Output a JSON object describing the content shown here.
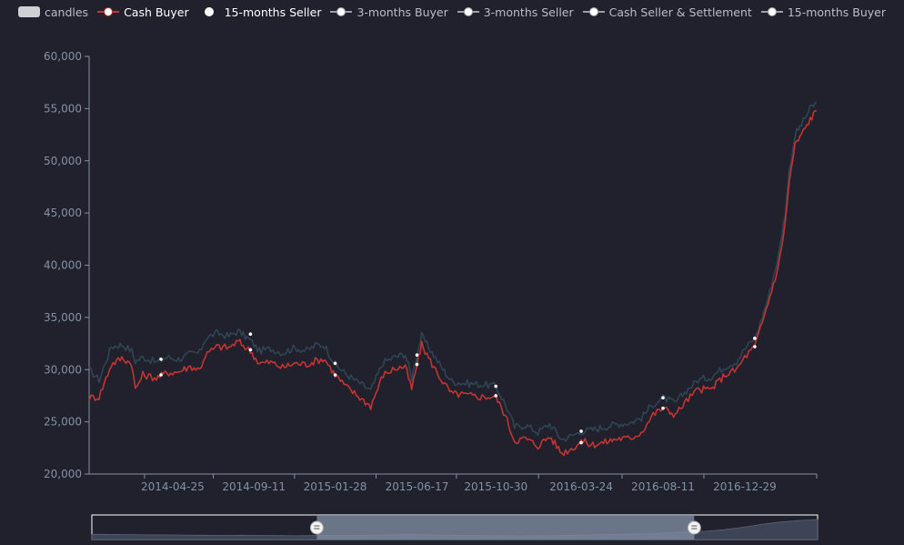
{
  "legend": {
    "items": [
      {
        "label": "candles",
        "state": "inactive",
        "swatch": "box"
      },
      {
        "label": "Cash Buyer",
        "state": "active",
        "swatch": "line",
        "color": "#c23531"
      },
      {
        "label": "15-months Seller",
        "state": "active",
        "swatch": "dot",
        "color": "#ffffff"
      },
      {
        "label": "3-months Buyer",
        "state": "inactive",
        "swatch": "line",
        "color": "#9aa0a8"
      },
      {
        "label": "3-months Seller",
        "state": "inactive",
        "swatch": "line",
        "color": "#9aa0a8"
      },
      {
        "label": "Cash Seller & Settlement",
        "state": "inactive",
        "swatch": "line",
        "color": "#9aa0a8"
      },
      {
        "label": "15-months Buyer",
        "state": "inactive",
        "swatch": "line",
        "color": "#9aa0a8"
      }
    ]
  },
  "colors": {
    "background": "#21202d",
    "cash_buyer": "#c23531",
    "seller_15m": "#2f4554",
    "axis": "#8392a5",
    "slider_selected": "#8392a5",
    "slider_border": "#ffffff"
  },
  "chart_data": {
    "type": "line",
    "title": "",
    "xlabel": "",
    "ylabel": "",
    "ylim": [
      20000,
      60000
    ],
    "yticks": [
      20000,
      25000,
      30000,
      35000,
      40000,
      45000,
      50000,
      55000,
      60000
    ],
    "ytick_labels": [
      "20,000",
      "25,000",
      "30,000",
      "35,000",
      "40,000",
      "45,000",
      "50,000",
      "55,000",
      "60,000"
    ],
    "xrange": [
      "2013-12-03",
      "2017-05-01"
    ],
    "xticks": [
      "2014-04-25",
      "2014-09-11",
      "2015-01-28",
      "2015-06-17",
      "2015-10-30",
      "2016-03-24",
      "2016-08-11",
      "2016-12-29"
    ],
    "grid": false,
    "legend_position": "top-center",
    "series": [
      {
        "name": "Cash Buyer",
        "color": "#c23531",
        "points": [
          [
            "2013-12-03",
            27300
          ],
          [
            "2013-12-20",
            27400
          ],
          [
            "2014-01-10",
            30500
          ],
          [
            "2014-01-28",
            31100
          ],
          [
            "2014-02-14",
            30600
          ],
          [
            "2014-02-20",
            28100
          ],
          [
            "2014-03-05",
            29500
          ],
          [
            "2014-03-28",
            29200
          ],
          [
            "2014-04-15",
            29700
          ],
          [
            "2014-05-05",
            29800
          ],
          [
            "2014-05-25",
            30300
          ],
          [
            "2014-06-10",
            30000
          ],
          [
            "2014-06-20",
            31400
          ],
          [
            "2014-07-10",
            32200
          ],
          [
            "2014-07-30",
            32100
          ],
          [
            "2014-08-15",
            32700
          ],
          [
            "2014-09-05",
            31800
          ],
          [
            "2014-09-20",
            30600
          ],
          [
            "2014-10-10",
            30700
          ],
          [
            "2014-10-30",
            30200
          ],
          [
            "2014-11-20",
            30600
          ],
          [
            "2014-12-10",
            30500
          ],
          [
            "2014-12-28",
            30900
          ],
          [
            "2015-01-10",
            31000
          ],
          [
            "2015-01-28",
            29500
          ],
          [
            "2015-02-15",
            28400
          ],
          [
            "2015-03-05",
            27600
          ],
          [
            "2015-03-30",
            26500
          ],
          [
            "2015-04-20",
            29500
          ],
          [
            "2015-05-10",
            30100
          ],
          [
            "2015-05-28",
            30300
          ],
          [
            "2015-06-08",
            28100
          ],
          [
            "2015-06-17",
            30500
          ],
          [
            "2015-06-25",
            32400
          ],
          [
            "2015-07-10",
            30800
          ],
          [
            "2015-07-28",
            29100
          ],
          [
            "2015-08-15",
            27700
          ],
          [
            "2015-09-05",
            27600
          ],
          [
            "2015-09-30",
            27400
          ],
          [
            "2015-10-20",
            27400
          ],
          [
            "2015-10-30",
            27400
          ],
          [
            "2015-11-15",
            25600
          ],
          [
            "2015-12-01",
            23200
          ],
          [
            "2015-12-20",
            23400
          ],
          [
            "2016-01-10",
            22700
          ],
          [
            "2016-01-30",
            23600
          ],
          [
            "2016-02-20",
            22000
          ],
          [
            "2016-03-10",
            22500
          ],
          [
            "2016-03-24",
            23200
          ],
          [
            "2016-04-10",
            22800
          ],
          [
            "2016-05-01",
            23000
          ],
          [
            "2016-05-25",
            23400
          ],
          [
            "2016-06-15",
            23400
          ],
          [
            "2016-07-05",
            24000
          ],
          [
            "2016-07-25",
            25700
          ],
          [
            "2016-08-11",
            26300
          ],
          [
            "2016-09-01",
            25700
          ],
          [
            "2016-09-20",
            27000
          ],
          [
            "2016-10-10",
            28100
          ],
          [
            "2016-11-01",
            28100
          ],
          [
            "2016-11-25",
            29500
          ],
          [
            "2016-12-15",
            30000
          ],
          [
            "2016-12-29",
            31200
          ],
          [
            "2017-01-15",
            32200
          ],
          [
            "2017-01-28",
            34500
          ],
          [
            "2017-02-10",
            37000
          ],
          [
            "2017-02-25",
            40000
          ],
          [
            "2017-03-08",
            44000
          ],
          [
            "2017-03-15",
            48000
          ],
          [
            "2017-03-25",
            51500
          ],
          [
            "2017-04-05",
            52500
          ],
          [
            "2017-04-20",
            54000
          ],
          [
            "2017-05-01",
            54800
          ]
        ]
      },
      {
        "name": "15-months Seller",
        "color": "#2f4554",
        "points": [
          [
            "2013-12-03",
            30000
          ],
          [
            "2013-12-20",
            29000
          ],
          [
            "2014-01-10",
            32200
          ],
          [
            "2014-01-28",
            32400
          ],
          [
            "2014-02-14",
            31800
          ],
          [
            "2014-02-20",
            30800
          ],
          [
            "2014-03-05",
            31200
          ],
          [
            "2014-03-28",
            30700
          ],
          [
            "2014-04-15",
            31200
          ],
          [
            "2014-05-05",
            31000
          ],
          [
            "2014-05-25",
            31500
          ],
          [
            "2014-06-10",
            31600
          ],
          [
            "2014-06-20",
            33000
          ],
          [
            "2014-07-10",
            33500
          ],
          [
            "2014-07-30",
            33200
          ],
          [
            "2014-08-15",
            33700
          ],
          [
            "2014-09-05",
            32800
          ],
          [
            "2014-09-20",
            31800
          ],
          [
            "2014-10-10",
            32000
          ],
          [
            "2014-10-30",
            31600
          ],
          [
            "2014-11-20",
            32100
          ],
          [
            "2014-12-10",
            31800
          ],
          [
            "2014-12-28",
            32400
          ],
          [
            "2015-01-10",
            32300
          ],
          [
            "2015-01-28",
            30500
          ],
          [
            "2015-02-15",
            29600
          ],
          [
            "2015-03-05",
            28900
          ],
          [
            "2015-03-30",
            28000
          ],
          [
            "2015-04-20",
            30700
          ],
          [
            "2015-05-10",
            31200
          ],
          [
            "2015-05-28",
            31500
          ],
          [
            "2015-06-08",
            29200
          ],
          [
            "2015-06-17",
            31500
          ],
          [
            "2015-06-25",
            33200
          ],
          [
            "2015-07-10",
            31900
          ],
          [
            "2015-07-28",
            30300
          ],
          [
            "2015-08-15",
            28900
          ],
          [
            "2015-09-05",
            28700
          ],
          [
            "2015-09-30",
            28600
          ],
          [
            "2015-10-20",
            28500
          ],
          [
            "2015-10-30",
            28400
          ],
          [
            "2015-11-15",
            26700
          ],
          [
            "2015-12-01",
            24500
          ],
          [
            "2015-12-20",
            24700
          ],
          [
            "2016-01-10",
            24000
          ],
          [
            "2016-01-30",
            24800
          ],
          [
            "2016-02-20",
            23300
          ],
          [
            "2016-03-10",
            23700
          ],
          [
            "2016-03-24",
            24100
          ],
          [
            "2016-04-10",
            24200
          ],
          [
            "2016-05-01",
            24500
          ],
          [
            "2016-05-25",
            24800
          ],
          [
            "2016-06-15",
            24900
          ],
          [
            "2016-07-05",
            25400
          ],
          [
            "2016-07-25",
            26700
          ],
          [
            "2016-08-11",
            27300
          ],
          [
            "2016-09-01",
            26800
          ],
          [
            "2016-09-20",
            28000
          ],
          [
            "2016-10-10",
            29000
          ],
          [
            "2016-11-01",
            29300
          ],
          [
            "2016-11-25",
            30300
          ],
          [
            "2016-12-15",
            30800
          ],
          [
            "2016-12-29",
            32000
          ],
          [
            "2017-01-15",
            33000
          ],
          [
            "2017-01-28",
            35000
          ],
          [
            "2017-02-10",
            37500
          ],
          [
            "2017-02-25",
            41000
          ],
          [
            "2017-03-08",
            45000
          ],
          [
            "2017-03-15",
            49000
          ],
          [
            "2017-03-25",
            52500
          ],
          [
            "2017-04-05",
            53500
          ],
          [
            "2017-04-20",
            55000
          ],
          [
            "2017-05-01",
            55600
          ]
        ]
      }
    ],
    "markers": {
      "Cash Buyer": [
        [
          "2014-04-05",
          29500
        ],
        [
          "2014-09-05",
          31900
        ],
        [
          "2015-01-28",
          29500
        ],
        [
          "2015-06-17",
          30500
        ],
        [
          "2015-10-30",
          27500
        ],
        [
          "2016-03-24",
          23000
        ],
        [
          "2016-08-11",
          26300
        ],
        [
          "2017-01-15",
          32200
        ]
      ],
      "15-months Seller": [
        [
          "2014-04-05",
          31000
        ],
        [
          "2014-09-05",
          33400
        ],
        [
          "2015-01-28",
          30600
        ],
        [
          "2015-06-17",
          31400
        ],
        [
          "2015-10-30",
          28400
        ],
        [
          "2016-03-24",
          24100
        ],
        [
          "2016-08-11",
          27300
        ],
        [
          "2017-01-15",
          33000
        ]
      ]
    },
    "zoom": {
      "start_percent": 31,
      "end_percent": 83,
      "preview": [
        0.18,
        0.17,
        0.16,
        0.15,
        0.15,
        0.14,
        0.13,
        0.12,
        0.13,
        0.12,
        0.11,
        0.1,
        0.11,
        0.12,
        0.12,
        0.13,
        0.15,
        0.16,
        0.15,
        0.14,
        0.12,
        0.11,
        0.1,
        0.09,
        0.1,
        0.11,
        0.13,
        0.15,
        0.17,
        0.19,
        0.22,
        0.26,
        0.3,
        0.34,
        0.42,
        0.55,
        0.7,
        0.82,
        0.9,
        0.95
      ]
    }
  }
}
